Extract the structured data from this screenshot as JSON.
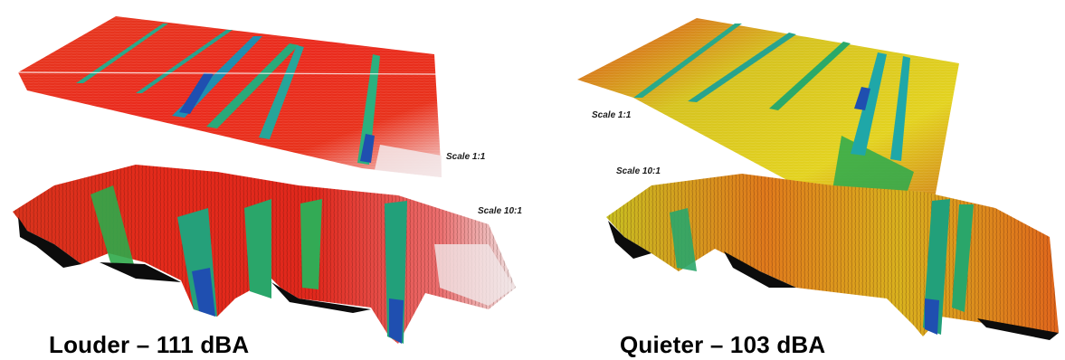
{
  "panels": [
    {
      "name": "louder",
      "caption": "Louder – 111 dBA",
      "scale_flat": "Scale 1:1",
      "scale_exaggerated": "Scale 10:1"
    },
    {
      "name": "quieter",
      "caption": "Quieter – 103 dBA",
      "scale_flat": "Scale 1:1",
      "scale_exaggerated": "Scale 10:1"
    }
  ],
  "palette": {
    "red": "#e8251c",
    "orange": "#f08a1e",
    "yellow": "#d9d21e",
    "green": "#2faa4a",
    "teal": "#1fa7a8",
    "blue": "#1f4fb0",
    "white": "#f2eeee",
    "shadow": "#0c0c0c"
  }
}
